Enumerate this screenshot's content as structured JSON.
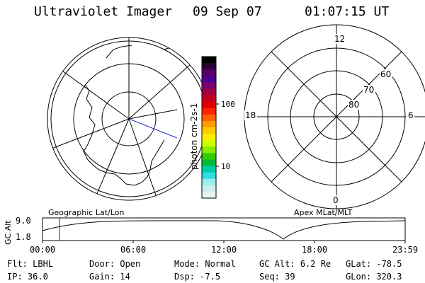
{
  "header": {
    "title": "Ultraviolet Imager",
    "date": "09 Sep 07",
    "time": "01:07:15 UT"
  },
  "colorbar": {
    "label": "photon cm-2s-1",
    "ticks": [
      "100",
      "10"
    ],
    "colors": [
      "#000000",
      "#2a0033",
      "#550066",
      "#4a0090",
      "#7a0070",
      "#a00040",
      "#c00020",
      "#e00000",
      "#ff2000",
      "#ff6000",
      "#ff9900",
      "#ffcc00",
      "#ffee00",
      "#ccff00",
      "#88ee00",
      "#33cc00",
      "#00bb33",
      "#00ccaa",
      "#33dddd",
      "#99eeee",
      "#cceeee",
      "#e8f4f4"
    ]
  },
  "polar_plot": {
    "mlt_labels": {
      "top": "12",
      "right": "6",
      "bottom": "0",
      "left": "18"
    },
    "lat_labels": [
      "60",
      "70",
      "80"
    ]
  },
  "panel_labels": {
    "left": "Geographic Lat/Lon",
    "right": "Apex MLat/MLT"
  },
  "timeline": {
    "ylabel": "GC Alt",
    "y_ticks": [
      "9.0",
      "1.8"
    ],
    "x_ticks": [
      "00:00",
      "06:00",
      "12:00",
      "18:00",
      "23:59"
    ],
    "current_marker": "01:07:15"
  },
  "footer": {
    "row1": [
      {
        "key": "Flt:",
        "value": "LBHL"
      },
      {
        "key": "Door:",
        "value": "Open"
      },
      {
        "key": "Mode:",
        "value": "Normal"
      },
      {
        "key": "GC Alt:",
        "value": "6.2 Re"
      },
      {
        "key": "GLat:",
        "value": "-78.5"
      }
    ],
    "row2": [
      {
        "key": "IP:",
        "value": "36.0"
      },
      {
        "key": "Gain:",
        "value": "14"
      },
      {
        "key": "Dsp:",
        "value": "-7.5"
      },
      {
        "key": "Seq:",
        "value": "39"
      },
      {
        "key": "GLon:",
        "value": "320.3"
      }
    ]
  }
}
